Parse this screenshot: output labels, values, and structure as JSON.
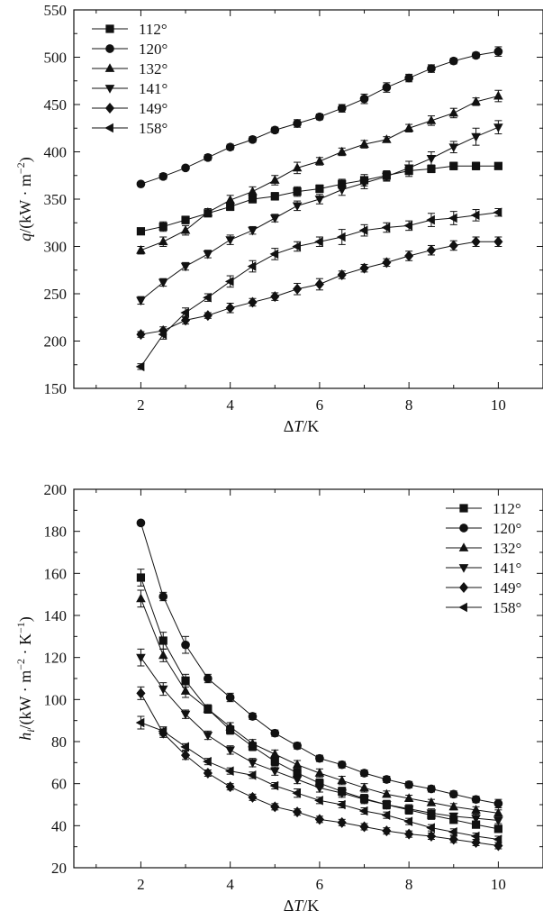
{
  "chart_data": [
    {
      "type": "line",
      "title": "",
      "xlabel_parts": [
        "Δ",
        "T",
        "/K"
      ],
      "ylabel_parts": [
        "q",
        "/(kW · m",
        "−2",
        ")"
      ],
      "xlim": [
        0.5,
        11
      ],
      "ylim": [
        150,
        550
      ],
      "xticks": [
        2,
        4,
        6,
        8,
        10
      ],
      "yticks": [
        150,
        200,
        250,
        300,
        350,
        400,
        450,
        500,
        550
      ],
      "grid": false,
      "legend_position": "top-left",
      "x": [
        2,
        2.5,
        3,
        3.5,
        4,
        4.5,
        5,
        5.5,
        6,
        6.5,
        7,
        7.5,
        8,
        8.5,
        9,
        9.5,
        10
      ],
      "series": [
        {
          "name": "112°",
          "marker": "square",
          "values": [
            316,
            321,
            328,
            335,
            342,
            350,
            353,
            358,
            361,
            366,
            370,
            375,
            380,
            382,
            385,
            385,
            385
          ],
          "errors": [
            3,
            5,
            4,
            3,
            4,
            4,
            4,
            5,
            4,
            5,
            6,
            5,
            6,
            4,
            4,
            4,
            3
          ]
        },
        {
          "name": "120°",
          "marker": "circle",
          "values": [
            366,
            374,
            383,
            394,
            405,
            413,
            423,
            430,
            437,
            446,
            456,
            468,
            478,
            488,
            496,
            502,
            506
          ],
          "errors": [
            2,
            3,
            2,
            3,
            3,
            3,
            3,
            4,
            3,
            4,
            5,
            5,
            4,
            4,
            3,
            3,
            5
          ]
        },
        {
          "name": "132°",
          "marker": "triangle-up",
          "values": [
            296,
            305,
            317,
            336,
            349,
            358,
            370,
            383,
            390,
            400,
            408,
            413,
            425,
            433,
            441,
            453,
            459
          ],
          "errors": [
            4,
            5,
            5,
            4,
            5,
            5,
            5,
            6,
            4,
            4,
            4,
            3,
            4,
            5,
            5,
            4,
            6
          ]
        },
        {
          "name": "141°",
          "marker": "triangle-down",
          "values": [
            243,
            262,
            279,
            292,
            307,
            317,
            330,
            343,
            350,
            360,
            367,
            374,
            383,
            393,
            405,
            416,
            426
          ],
          "errors": [
            4,
            4,
            4,
            4,
            5,
            4,
            4,
            5,
            5,
            6,
            6,
            5,
            7,
            7,
            6,
            9,
            7
          ]
        },
        {
          "name": "149°",
          "marker": "diamond",
          "values": [
            207,
            211,
            222,
            227,
            235,
            241,
            247,
            255,
            260,
            270,
            277,
            283,
            290,
            296,
            301,
            305,
            305
          ],
          "errors": [
            3,
            4,
            4,
            3,
            5,
            4,
            4,
            6,
            6,
            4,
            4,
            4,
            5,
            5,
            5,
            5,
            5
          ]
        },
        {
          "name": "158°",
          "marker": "triangle-left",
          "values": [
            173,
            207,
            230,
            246,
            263,
            279,
            292,
            300,
            305,
            310,
            317,
            320,
            322,
            328,
            330,
            333,
            336
          ],
          "errors": [
            3,
            5,
            5,
            4,
            6,
            6,
            6,
            5,
            5,
            8,
            6,
            5,
            5,
            7,
            7,
            6,
            4
          ]
        }
      ]
    },
    {
      "type": "line",
      "title": "",
      "xlabel_parts": [
        "Δ",
        "T",
        "/K"
      ],
      "ylabel_parts": [
        "h",
        "i",
        "/(kW · m",
        "−2",
        " · K",
        "−1",
        ")"
      ],
      "xlim": [
        0.5,
        11
      ],
      "ylim": [
        20,
        200
      ],
      "xticks": [
        2,
        4,
        6,
        8,
        10
      ],
      "yticks": [
        20,
        40,
        60,
        80,
        100,
        120,
        140,
        160,
        180,
        200
      ],
      "grid": false,
      "legend_position": "top-right",
      "x": [
        2,
        2.5,
        3,
        3.5,
        4,
        4.5,
        5,
        5.5,
        6,
        6.5,
        7,
        7.5,
        8,
        8.5,
        9,
        9.5,
        10
      ],
      "series": [
        {
          "name": "112°",
          "marker": "square",
          "values": [
            158,
            128,
            109,
            95.5,
            85.5,
            77.7,
            70.6,
            65.1,
            60.2,
            56.3,
            52.9,
            50,
            47.5,
            45,
            42.8,
            40.5,
            38.5
          ],
          "errors": [
            4,
            4,
            3,
            2,
            2,
            2,
            2,
            2,
            2,
            2,
            2,
            2,
            2,
            2,
            1.5,
            1.5,
            1.5
          ]
        },
        {
          "name": "120°",
          "marker": "circle",
          "values": [
            184,
            149,
            126,
            110,
            101,
            92,
            84,
            78,
            72,
            69,
            65,
            62,
            59.5,
            57.5,
            55,
            52.5,
            50.5
          ],
          "errors": [
            1,
            2,
            4,
            2,
            2,
            1.5,
            1.5,
            1.5,
            1.5,
            1.5,
            1.5,
            1.5,
            1.5,
            1.5,
            1.5,
            1.5,
            2
          ]
        },
        {
          "name": "132°",
          "marker": "triangle-up",
          "values": [
            148,
            121,
            104,
            95.5,
            87,
            79,
            74,
            69,
            65,
            61.5,
            58,
            55,
            53,
            51,
            49,
            47.5,
            46
          ],
          "errors": [
            4,
            3,
            3,
            2,
            2,
            2,
            2,
            2,
            2,
            2,
            2,
            1.5,
            1.5,
            1.5,
            1.5,
            1.5,
            1.5
          ]
        },
        {
          "name": "141°",
          "marker": "triangle-down",
          "values": [
            120,
            105,
            93,
            83,
            76,
            70,
            66,
            62,
            58,
            55.5,
            52.5,
            50,
            48,
            46,
            44.5,
            43.5,
            42.5
          ],
          "errors": [
            4,
            3,
            2,
            2,
            2,
            2,
            2,
            2,
            2,
            2,
            2,
            2,
            2,
            2,
            1.5,
            2,
            1.5
          ]
        },
        {
          "name": "149°",
          "marker": "diamond",
          "values": [
            103,
            84,
            73.5,
            65,
            58.5,
            53.5,
            49,
            46.5,
            43,
            41.5,
            39.5,
            37.5,
            36,
            35,
            33.5,
            32,
            30.5
          ],
          "errors": [
            3,
            2,
            2,
            1.5,
            1.5,
            1.5,
            1.5,
            1.5,
            1.5,
            1.5,
            1.5,
            1.5,
            1.5,
            1.5,
            1.5,
            1.5,
            1.5
          ]
        },
        {
          "name": "158°",
          "marker": "triangle-left",
          "values": [
            89,
            85,
            77.5,
            70.5,
            66,
            64,
            59,
            55.5,
            52,
            50,
            47,
            45,
            42,
            39,
            37,
            35,
            33.5
          ],
          "errors": [
            3,
            2,
            1.5,
            1.5,
            1.5,
            1.5,
            1.5,
            2,
            1.5,
            1.5,
            1.5,
            1.5,
            1.5,
            1.5,
            1.5,
            1.5,
            1.5
          ]
        }
      ]
    }
  ]
}
